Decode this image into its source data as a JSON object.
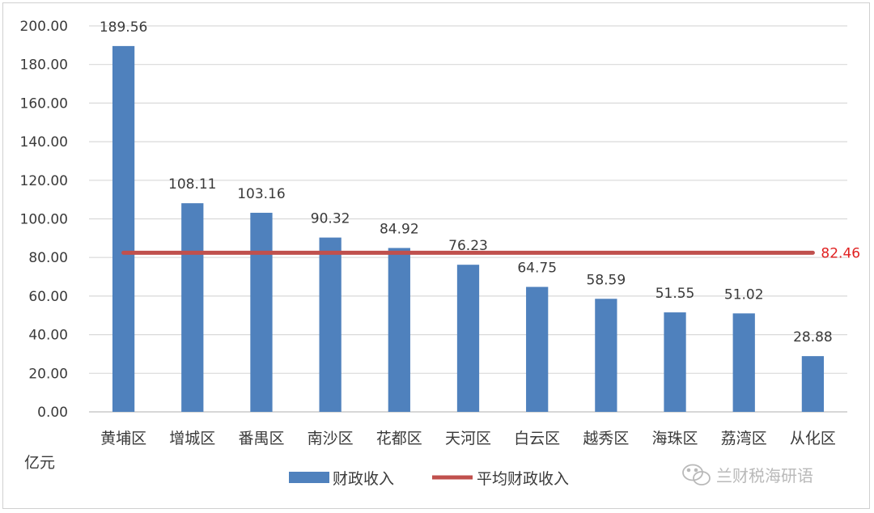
{
  "chart_data": {
    "type": "bar",
    "categories": [
      "黄埔区",
      "增城区",
      "番禺区",
      "南沙区",
      "花都区",
      "天河区",
      "白云区",
      "越秀区",
      "海珠区",
      "荔湾区",
      "从化区"
    ],
    "series": [
      {
        "name": "财政收入",
        "type": "bar",
        "values": [
          189.56,
          108.11,
          103.16,
          90.32,
          84.92,
          76.23,
          64.75,
          58.59,
          51.55,
          51.02,
          28.88
        ],
        "labels": [
          "189.56",
          "108.11",
          "103.16",
          "90.32",
          "84.92",
          "76.23",
          "64.75",
          "58.59",
          "51.55",
          "51.02",
          "28.88"
        ],
        "color": "#4f81bd"
      },
      {
        "name": "平均财政收入",
        "type": "line",
        "value": 82.46,
        "label": "82.46",
        "color": "#c0504d",
        "label_color": "#e02020"
      }
    ],
    "y_ticks": [
      "0.00",
      "20.00",
      "40.00",
      "60.00",
      "80.00",
      "100.00",
      "120.00",
      "140.00",
      "160.00",
      "180.00",
      "200.00"
    ],
    "ylim": [
      0,
      200
    ],
    "ylabel": "亿元",
    "grid": true,
    "legend_position": "bottom"
  },
  "watermark": {
    "text": "兰财税海研语",
    "icon": "wechat-icon"
  }
}
